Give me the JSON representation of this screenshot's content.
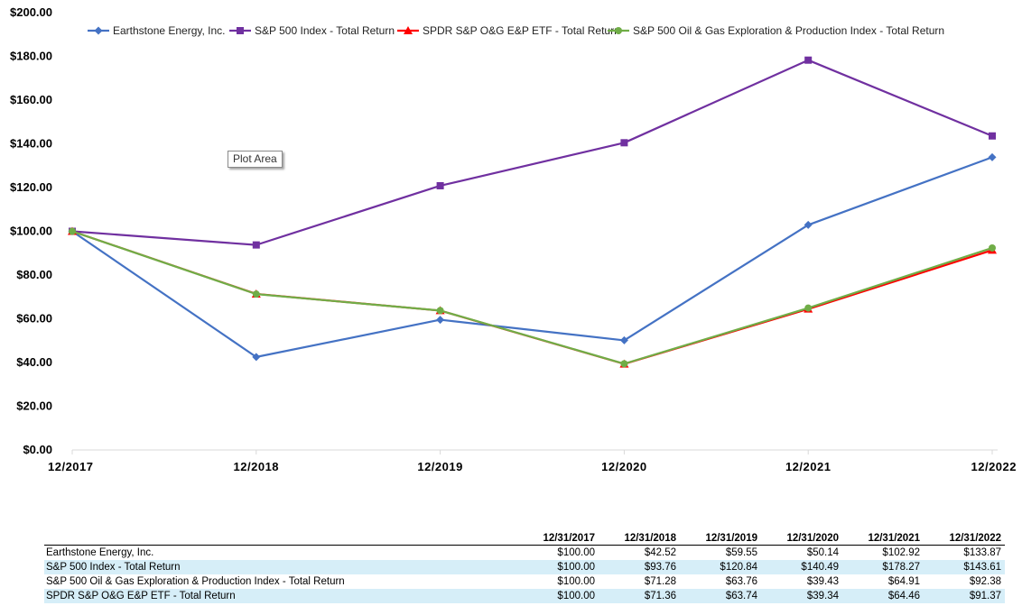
{
  "chart_data": {
    "type": "line",
    "title": "",
    "xlabel": "",
    "ylabel": "",
    "ylim": [
      0,
      200
    ],
    "y_ticks": [
      "$0.00",
      "$20.00",
      "$40.00",
      "$60.00",
      "$80.00",
      "$100.00",
      "$120.00",
      "$140.00",
      "$160.00",
      "$180.00",
      "$200.00"
    ],
    "y_tick_values": [
      0,
      20,
      40,
      60,
      80,
      100,
      120,
      140,
      160,
      180,
      200
    ],
    "categories": [
      "12/2017",
      "12/2018",
      "12/2019",
      "12/2020",
      "12/2021",
      "12/2022"
    ],
    "legend_position": "top",
    "grid": false,
    "series": [
      {
        "name": "Earthstone Energy, Inc.",
        "color": "#4472c4",
        "marker": "diamond",
        "values": [
          100.0,
          42.52,
          59.55,
          50.14,
          102.92,
          133.87
        ]
      },
      {
        "name": "S&P 500 Index - Total Return",
        "color": "#7030a0",
        "marker": "square",
        "values": [
          100.0,
          93.76,
          120.84,
          140.49,
          178.27,
          143.61
        ]
      },
      {
        "name": "SPDR S&P O&G E&P ETF - Total Return",
        "color": "#ff0000",
        "marker": "triangle",
        "values": [
          100.0,
          71.36,
          63.74,
          39.34,
          64.46,
          91.37
        ]
      },
      {
        "name": "S&P 500 Oil & Gas Exploration & Production Index - Total Return",
        "color": "#70ad47",
        "marker": "circle",
        "values": [
          100.0,
          71.28,
          63.76,
          39.43,
          64.91,
          92.38
        ]
      }
    ]
  },
  "tooltip": "Plot Area",
  "table": {
    "columns": [
      "12/31/2017",
      "12/31/2018",
      "12/31/2019",
      "12/31/2020",
      "12/31/2021",
      "12/31/2022"
    ],
    "rows": [
      {
        "label": "Earthstone Energy, Inc.",
        "values": [
          "$100.00",
          "$42.52",
          "$59.55",
          "$50.14",
          "$102.92",
          "$133.87"
        ]
      },
      {
        "label": "S&P 500 Index - Total Return",
        "values": [
          "$100.00",
          "$93.76",
          "$120.84",
          "$140.49",
          "$178.27",
          "$143.61"
        ]
      },
      {
        "label": "S&P 500 Oil & Gas Exploration & Production Index - Total Return",
        "values": [
          "$100.00",
          "$71.28",
          "$63.76",
          "$39.43",
          "$64.91",
          "$92.38"
        ]
      },
      {
        "label": "SPDR S&P O&G E&P ETF - Total Return",
        "values": [
          "$100.00",
          "$71.36",
          "$63.74",
          "$39.34",
          "$64.46",
          "$91.37"
        ]
      }
    ]
  }
}
